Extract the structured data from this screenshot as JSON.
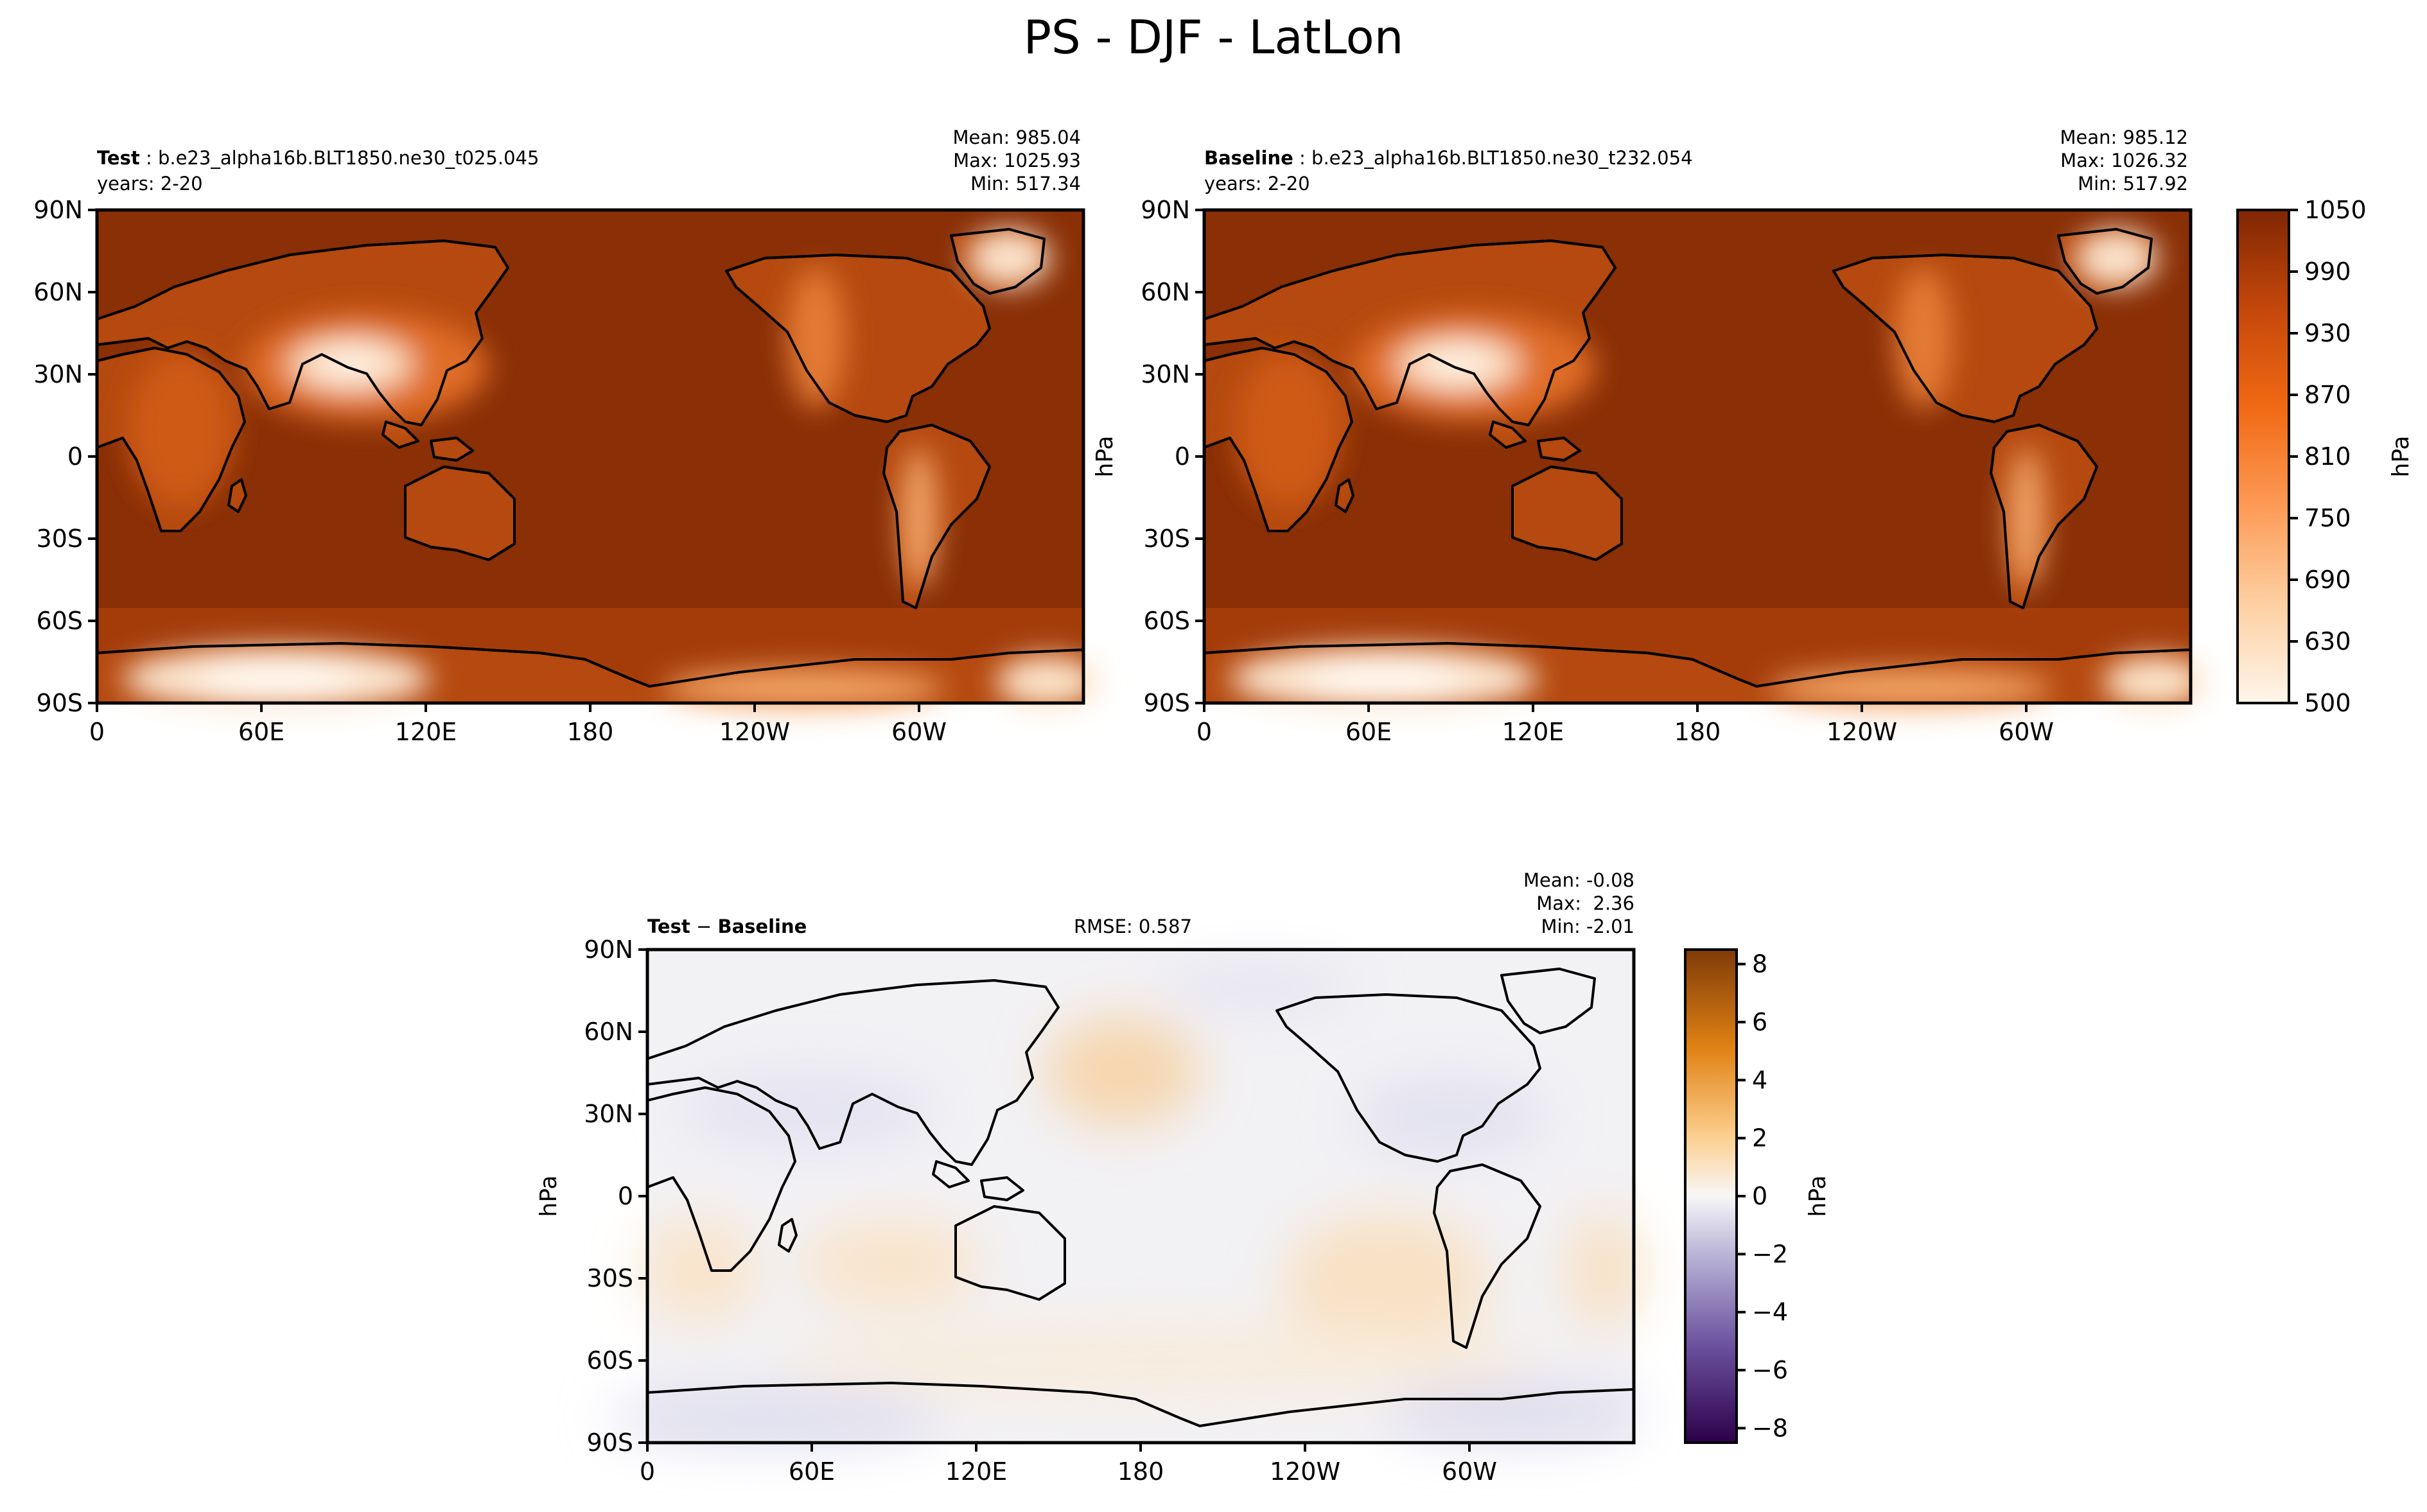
{
  "figure": {
    "title": "PS - DJF - LatLon"
  },
  "panels": [
    {
      "id": "test",
      "label": "Test",
      "case": "b.e23_alpha16b.BLT1850.ne30_t025.045",
      "years": "years: 2-20",
      "mean": "Mean: 985.04",
      "max": "Max: 1025.93",
      "min": "Min: 517.34"
    },
    {
      "id": "baseline",
      "label": "Baseline",
      "case": "b.e23_alpha16b.BLT1850.ne30_t232.054",
      "years": "years: 2-20",
      "mean": "Mean: 985.12",
      "max": "Max: 1026.32",
      "min": "Min: 517.92"
    },
    {
      "id": "diff",
      "label": "Test",
      "label2": "Baseline",
      "rmse": "RMSE: 0.587",
      "mean": "Mean: -0.08",
      "max": "Max:  2.36",
      "min": "Min: -2.01"
    }
  ],
  "chart_data": [
    {
      "type": "heatmap",
      "title": "Test",
      "x_ticks": [
        "0",
        "60E",
        "120E",
        "180",
        "120W",
        "60W"
      ],
      "y_ticks": [
        "90N",
        "60N",
        "30N",
        "0",
        "30S",
        "60S",
        "90S"
      ],
      "xlim": [
        0,
        360
      ],
      "ylim": [
        -90,
        90
      ],
      "colormap": "Oranges",
      "colorbar": {
        "label": "hPa",
        "ticks": [
          "1050",
          "990",
          "930",
          "870",
          "810",
          "750",
          "690",
          "630",
          "500"
        ],
        "range": [
          500,
          1050
        ]
      }
    },
    {
      "type": "heatmap",
      "title": "Baseline",
      "x_ticks": [
        "0",
        "60E",
        "120E",
        "180",
        "120W",
        "60W"
      ],
      "y_ticks": [
        "90N",
        "60N",
        "30N",
        "0",
        "30S",
        "60S",
        "90S"
      ],
      "xlim": [
        0,
        360
      ],
      "ylim": [
        -90,
        90
      ],
      "colormap": "Oranges",
      "ylabel": "hPa"
    },
    {
      "type": "heatmap",
      "title": "Test - Baseline",
      "x_ticks": [
        "0",
        "60E",
        "120E",
        "180",
        "120W",
        "60W"
      ],
      "y_ticks": [
        "90N",
        "60N",
        "30N",
        "0",
        "30S",
        "60S",
        "90S"
      ],
      "xlim": [
        0,
        360
      ],
      "ylim": [
        -90,
        90
      ],
      "colormap": "PuOr_r",
      "ylabel": "hPa",
      "colorbar": {
        "label": "hPa",
        "ticks": [
          "8",
          "6",
          "4",
          "2",
          "0",
          "−2",
          "−4",
          "−6",
          "−8"
        ],
        "range": [
          -8.5,
          8.5
        ]
      }
    }
  ],
  "colors": {
    "ocean_main": "#8a2f06",
    "land_low": "#b0460e",
    "land_mid": "#de6a22",
    "high_plateau": "#fde8d4",
    "diff_background": "#f2f1f3",
    "diff_positive": "#f8e3c8",
    "diff_negative": "#dcdcee",
    "coast": "#000000"
  }
}
